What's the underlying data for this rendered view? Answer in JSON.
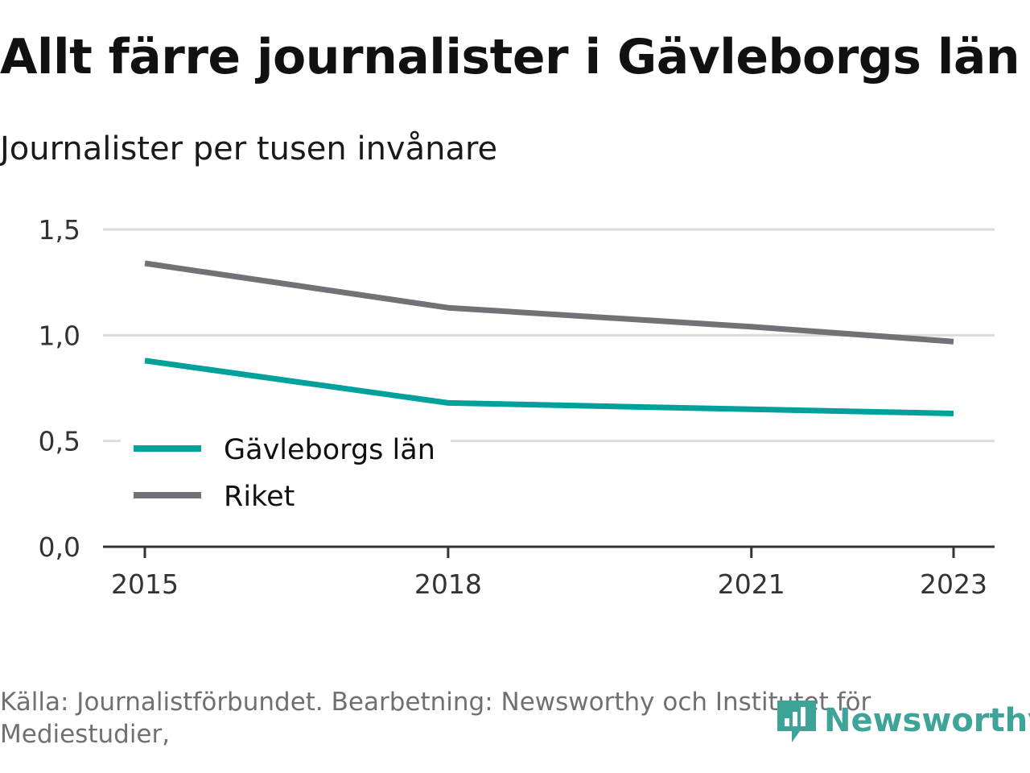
{
  "chart_data": {
    "type": "line",
    "title": "Allt färre journalister i Gävleborgs län",
    "subtitle": "Journalister per tusen invånare",
    "x": [
      2015,
      2018,
      2021,
      2023
    ],
    "x_tick_labels": [
      "2015",
      "2018",
      "2021",
      "2023"
    ],
    "y_tick_labels": [
      "0,0",
      "0,5",
      "1,0",
      "1,5"
    ],
    "y_ticks": [
      0,
      0.5,
      1.0,
      1.5
    ],
    "ylim": [
      0,
      1.5
    ],
    "xlim": [
      2015,
      2023
    ],
    "grid": true,
    "legend_position": "bottom-left",
    "series": [
      {
        "name": "Gävleborgs län",
        "color": "#00a19a",
        "values": [
          0.88,
          0.68,
          0.65,
          0.63
        ]
      },
      {
        "name": "Riket",
        "color": "#717176",
        "values": [
          1.34,
          1.13,
          1.04,
          0.97
        ]
      }
    ]
  },
  "footer": {
    "source": "Källa: Journalistförbundet. Bearbetning: Newsworthy och Institutet för Mediestudier,",
    "logo_text": "Newsworthy"
  }
}
